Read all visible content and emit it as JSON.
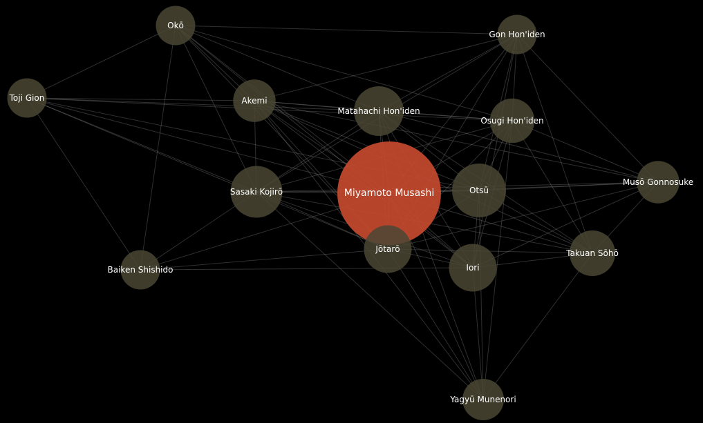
{
  "colors": {
    "background": "#000000",
    "node": "#4a4634",
    "focus_node": "#c44a2f",
    "edge": "#8a8a8a",
    "label": "#ffffff"
  },
  "graph": {
    "focus": "musashi",
    "nodes": [
      {
        "id": "oko",
        "label": "Okō",
        "weight": 2
      },
      {
        "id": "gon",
        "label": "Gon Hon'iden",
        "weight": 2
      },
      {
        "id": "toji",
        "label": "Toji Gion",
        "weight": 2
      },
      {
        "id": "akemi",
        "label": "Akemi",
        "weight": 2.3
      },
      {
        "id": "matahachi",
        "label": "Matahachi Hon'iden",
        "weight": 3
      },
      {
        "id": "osugi",
        "label": "Osugi Hon'iden",
        "weight": 2.5
      },
      {
        "id": "sasaki",
        "label": "Sasaki Kojirō",
        "weight": 3.2
      },
      {
        "id": "musashi",
        "label": "Miyamoto Musashi",
        "weight": 10
      },
      {
        "id": "otsu",
        "label": "Otsū",
        "weight": 3.4
      },
      {
        "id": "muso",
        "label": "Musō Gonnosuke",
        "weight": 2.3
      },
      {
        "id": "jotaro",
        "label": "Jōtarō",
        "weight": 2.8
      },
      {
        "id": "iori",
        "label": "Iori",
        "weight": 2.8
      },
      {
        "id": "takuan",
        "label": "Takuan Sōhō",
        "weight": 2.6
      },
      {
        "id": "baiken",
        "label": "Baiken Shishido",
        "weight": 2
      },
      {
        "id": "yagyu",
        "label": "Yagyū Munenori",
        "weight": 2.2
      }
    ],
    "edges": [
      [
        "oko",
        "gon"
      ],
      [
        "oko",
        "toji"
      ],
      [
        "oko",
        "akemi"
      ],
      [
        "oko",
        "matahachi"
      ],
      [
        "oko",
        "musashi"
      ],
      [
        "oko",
        "sasaki"
      ],
      [
        "oko",
        "baiken"
      ],
      [
        "oko",
        "osugi"
      ],
      [
        "oko",
        "jotaro"
      ],
      [
        "oko",
        "iori"
      ],
      [
        "toji",
        "akemi"
      ],
      [
        "toji",
        "matahachi"
      ],
      [
        "toji",
        "musashi"
      ],
      [
        "toji",
        "baiken"
      ],
      [
        "toji",
        "osugi"
      ],
      [
        "toji",
        "sasaki"
      ],
      [
        "toji",
        "otsu"
      ],
      [
        "toji",
        "jotaro"
      ],
      [
        "gon",
        "akemi"
      ],
      [
        "gon",
        "matahachi"
      ],
      [
        "gon",
        "osugi"
      ],
      [
        "gon",
        "musashi"
      ],
      [
        "gon",
        "otsu"
      ],
      [
        "gon",
        "takuan"
      ],
      [
        "gon",
        "muso"
      ],
      [
        "gon",
        "jotaro"
      ],
      [
        "gon",
        "sasaki"
      ],
      [
        "gon",
        "iori"
      ],
      [
        "akemi",
        "matahachi"
      ],
      [
        "akemi",
        "musashi"
      ],
      [
        "akemi",
        "sasaki"
      ],
      [
        "akemi",
        "osugi"
      ],
      [
        "akemi",
        "otsu"
      ],
      [
        "akemi",
        "jotaro"
      ],
      [
        "akemi",
        "iori"
      ],
      [
        "akemi",
        "muso"
      ],
      [
        "akemi",
        "yagyu"
      ],
      [
        "matahachi",
        "osugi"
      ],
      [
        "matahachi",
        "musashi"
      ],
      [
        "matahachi",
        "sasaki"
      ],
      [
        "matahachi",
        "otsu"
      ],
      [
        "matahachi",
        "jotaro"
      ],
      [
        "matahachi",
        "iori"
      ],
      [
        "matahachi",
        "takuan"
      ],
      [
        "matahachi",
        "muso"
      ],
      [
        "matahachi",
        "yagyu"
      ],
      [
        "osugi",
        "musashi"
      ],
      [
        "osugi",
        "otsu"
      ],
      [
        "osugi",
        "sasaki"
      ],
      [
        "osugi",
        "jotaro"
      ],
      [
        "osugi",
        "iori"
      ],
      [
        "osugi",
        "takuan"
      ],
      [
        "osugi",
        "muso"
      ],
      [
        "osugi",
        "yagyu"
      ],
      [
        "sasaki",
        "musashi"
      ],
      [
        "sasaki",
        "otsu"
      ],
      [
        "sasaki",
        "jotaro"
      ],
      [
        "sasaki",
        "iori"
      ],
      [
        "sasaki",
        "takuan"
      ],
      [
        "sasaki",
        "muso"
      ],
      [
        "sasaki",
        "yagyu"
      ],
      [
        "sasaki",
        "baiken"
      ],
      [
        "musashi",
        "otsu"
      ],
      [
        "musashi",
        "jotaro"
      ],
      [
        "musashi",
        "iori"
      ],
      [
        "musashi",
        "takuan"
      ],
      [
        "musashi",
        "muso"
      ],
      [
        "musashi",
        "yagyu"
      ],
      [
        "musashi",
        "baiken"
      ],
      [
        "otsu",
        "jotaro"
      ],
      [
        "otsu",
        "iori"
      ],
      [
        "otsu",
        "takuan"
      ],
      [
        "otsu",
        "muso"
      ],
      [
        "otsu",
        "yagyu"
      ],
      [
        "jotaro",
        "iori"
      ],
      [
        "jotaro",
        "takuan"
      ],
      [
        "jotaro",
        "muso"
      ],
      [
        "jotaro",
        "yagyu"
      ],
      [
        "jotaro",
        "baiken"
      ],
      [
        "iori",
        "takuan"
      ],
      [
        "iori",
        "muso"
      ],
      [
        "iori",
        "yagyu"
      ],
      [
        "iori",
        "baiken"
      ],
      [
        "takuan",
        "muso"
      ],
      [
        "takuan",
        "yagyu"
      ],
      [
        "takuan",
        "akemi"
      ]
    ]
  }
}
